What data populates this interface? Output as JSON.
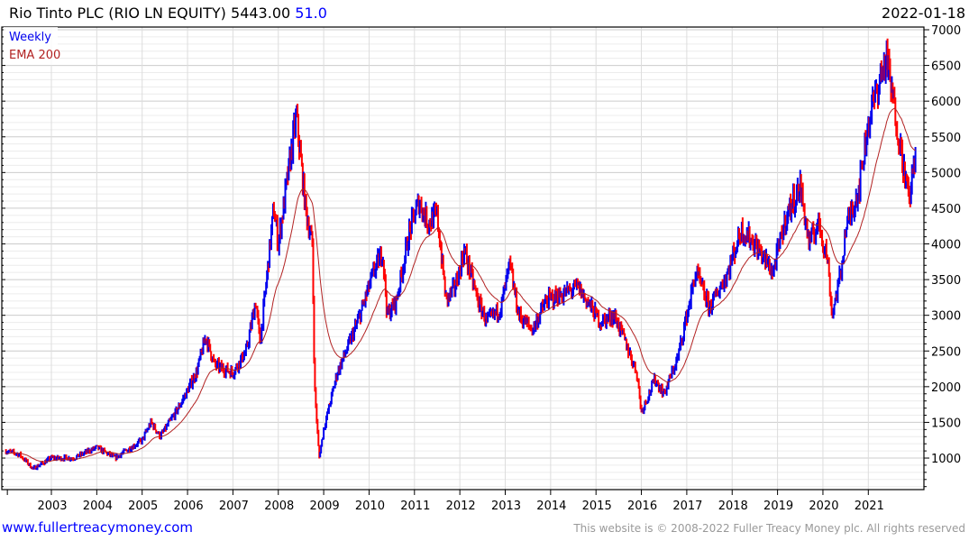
{
  "header": {
    "title": "Rio Tinto PLC (RIO LN EQUITY) 5443.00",
    "change": "51.0",
    "date": "2022-01-18"
  },
  "footer": {
    "site": "www.fullertreacymoney.com",
    "copyright": "This website is © 2008-2022 Fuller Treacy Money plc. All rights reserved"
  },
  "colors": {
    "up": "#0000ee",
    "down": "#ff0000",
    "ema": "#b22222",
    "grid": "#dddddd"
  },
  "chart_data": {
    "type": "candlestick-bar",
    "title": "Rio Tinto PLC (RIO LN EQUITY)",
    "legend": [
      "Weekly",
      "EMA 200"
    ],
    "legend_position": "top-left",
    "frequency": "weekly",
    "y_ticks": [
      1000,
      1500,
      2000,
      2500,
      3000,
      3500,
      4000,
      4500,
      5000,
      5500,
      6000,
      6500,
      7000
    ],
    "ylim": [
      500,
      7000
    ],
    "x_ticks": [
      "2003",
      "2004",
      "2005",
      "2006",
      "2007",
      "2008",
      "2009",
      "2010",
      "2011",
      "2012",
      "2013",
      "2014",
      "2015",
      "2016",
      "2017",
      "2018",
      "2019",
      "2020",
      "2021"
    ],
    "xlim": [
      2002.0,
      2022.05
    ],
    "price_path": [
      [
        2002.0,
        1100
      ],
      [
        2002.3,
        1050
      ],
      [
        2002.6,
        850
      ],
      [
        2003.0,
        1000
      ],
      [
        2003.5,
        1000
      ],
      [
        2004.0,
        1150
      ],
      [
        2004.4,
        1000
      ],
      [
        2005.0,
        1250
      ],
      [
        2005.2,
        1500
      ],
      [
        2005.4,
        1300
      ],
      [
        2005.8,
        1700
      ],
      [
        2006.2,
        2200
      ],
      [
        2006.4,
        2700
      ],
      [
        2006.6,
        2300
      ],
      [
        2007.0,
        2200
      ],
      [
        2007.3,
        2500
      ],
      [
        2007.5,
        3200
      ],
      [
        2007.6,
        2600
      ],
      [
        2007.9,
        4500
      ],
      [
        2008.0,
        4000
      ],
      [
        2008.4,
        5800
      ],
      [
        2008.6,
        4500
      ],
      [
        2008.75,
        4000
      ],
      [
        2008.8,
        2000
      ],
      [
        2008.9,
        1000
      ],
      [
        2009.0,
        1400
      ],
      [
        2009.3,
        2200
      ],
      [
        2009.5,
        2500
      ],
      [
        2009.8,
        3000
      ],
      [
        2010.1,
        3600
      ],
      [
        2010.3,
        3900
      ],
      [
        2010.4,
        3000
      ],
      [
        2010.6,
        3200
      ],
      [
        2010.9,
        4200
      ],
      [
        2011.1,
        4600
      ],
      [
        2011.3,
        4300
      ],
      [
        2011.5,
        4400
      ],
      [
        2011.7,
        3200
      ],
      [
        2011.9,
        3400
      ],
      [
        2012.1,
        3900
      ],
      [
        2012.4,
        3200
      ],
      [
        2012.6,
        2900
      ],
      [
        2012.9,
        3100
      ],
      [
        2013.1,
        3700
      ],
      [
        2013.3,
        3000
      ],
      [
        2013.6,
        2800
      ],
      [
        2013.9,
        3200
      ],
      [
        2014.3,
        3300
      ],
      [
        2014.6,
        3400
      ],
      [
        2014.9,
        3100
      ],
      [
        2015.1,
        2900
      ],
      [
        2015.4,
        3000
      ],
      [
        2015.6,
        2700
      ],
      [
        2015.9,
        2200
      ],
      [
        2016.0,
        1650
      ],
      [
        2016.3,
        2100
      ],
      [
        2016.5,
        1900
      ],
      [
        2016.8,
        2400
      ],
      [
        2017.0,
        3000
      ],
      [
        2017.2,
        3600
      ],
      [
        2017.5,
        3100
      ],
      [
        2017.9,
        3600
      ],
      [
        2018.2,
        4200
      ],
      [
        2018.5,
        4000
      ],
      [
        2018.7,
        3800
      ],
      [
        2018.9,
        3600
      ],
      [
        2019.2,
        4400
      ],
      [
        2019.5,
        4800
      ],
      [
        2019.7,
        4000
      ],
      [
        2019.9,
        4300
      ],
      [
        2020.1,
        3800
      ],
      [
        2020.2,
        3000
      ],
      [
        2020.4,
        3600
      ],
      [
        2020.5,
        4200
      ],
      [
        2020.8,
        4800
      ],
      [
        2021.0,
        5700
      ],
      [
        2021.2,
        6200
      ],
      [
        2021.4,
        6600
      ],
      [
        2021.6,
        5800
      ],
      [
        2021.8,
        5000
      ],
      [
        2021.9,
        4600
      ],
      [
        2022.0,
        5100
      ],
      [
        2022.05,
        5443
      ]
    ],
    "last_close": 5443.0,
    "ema_period": 200
  }
}
